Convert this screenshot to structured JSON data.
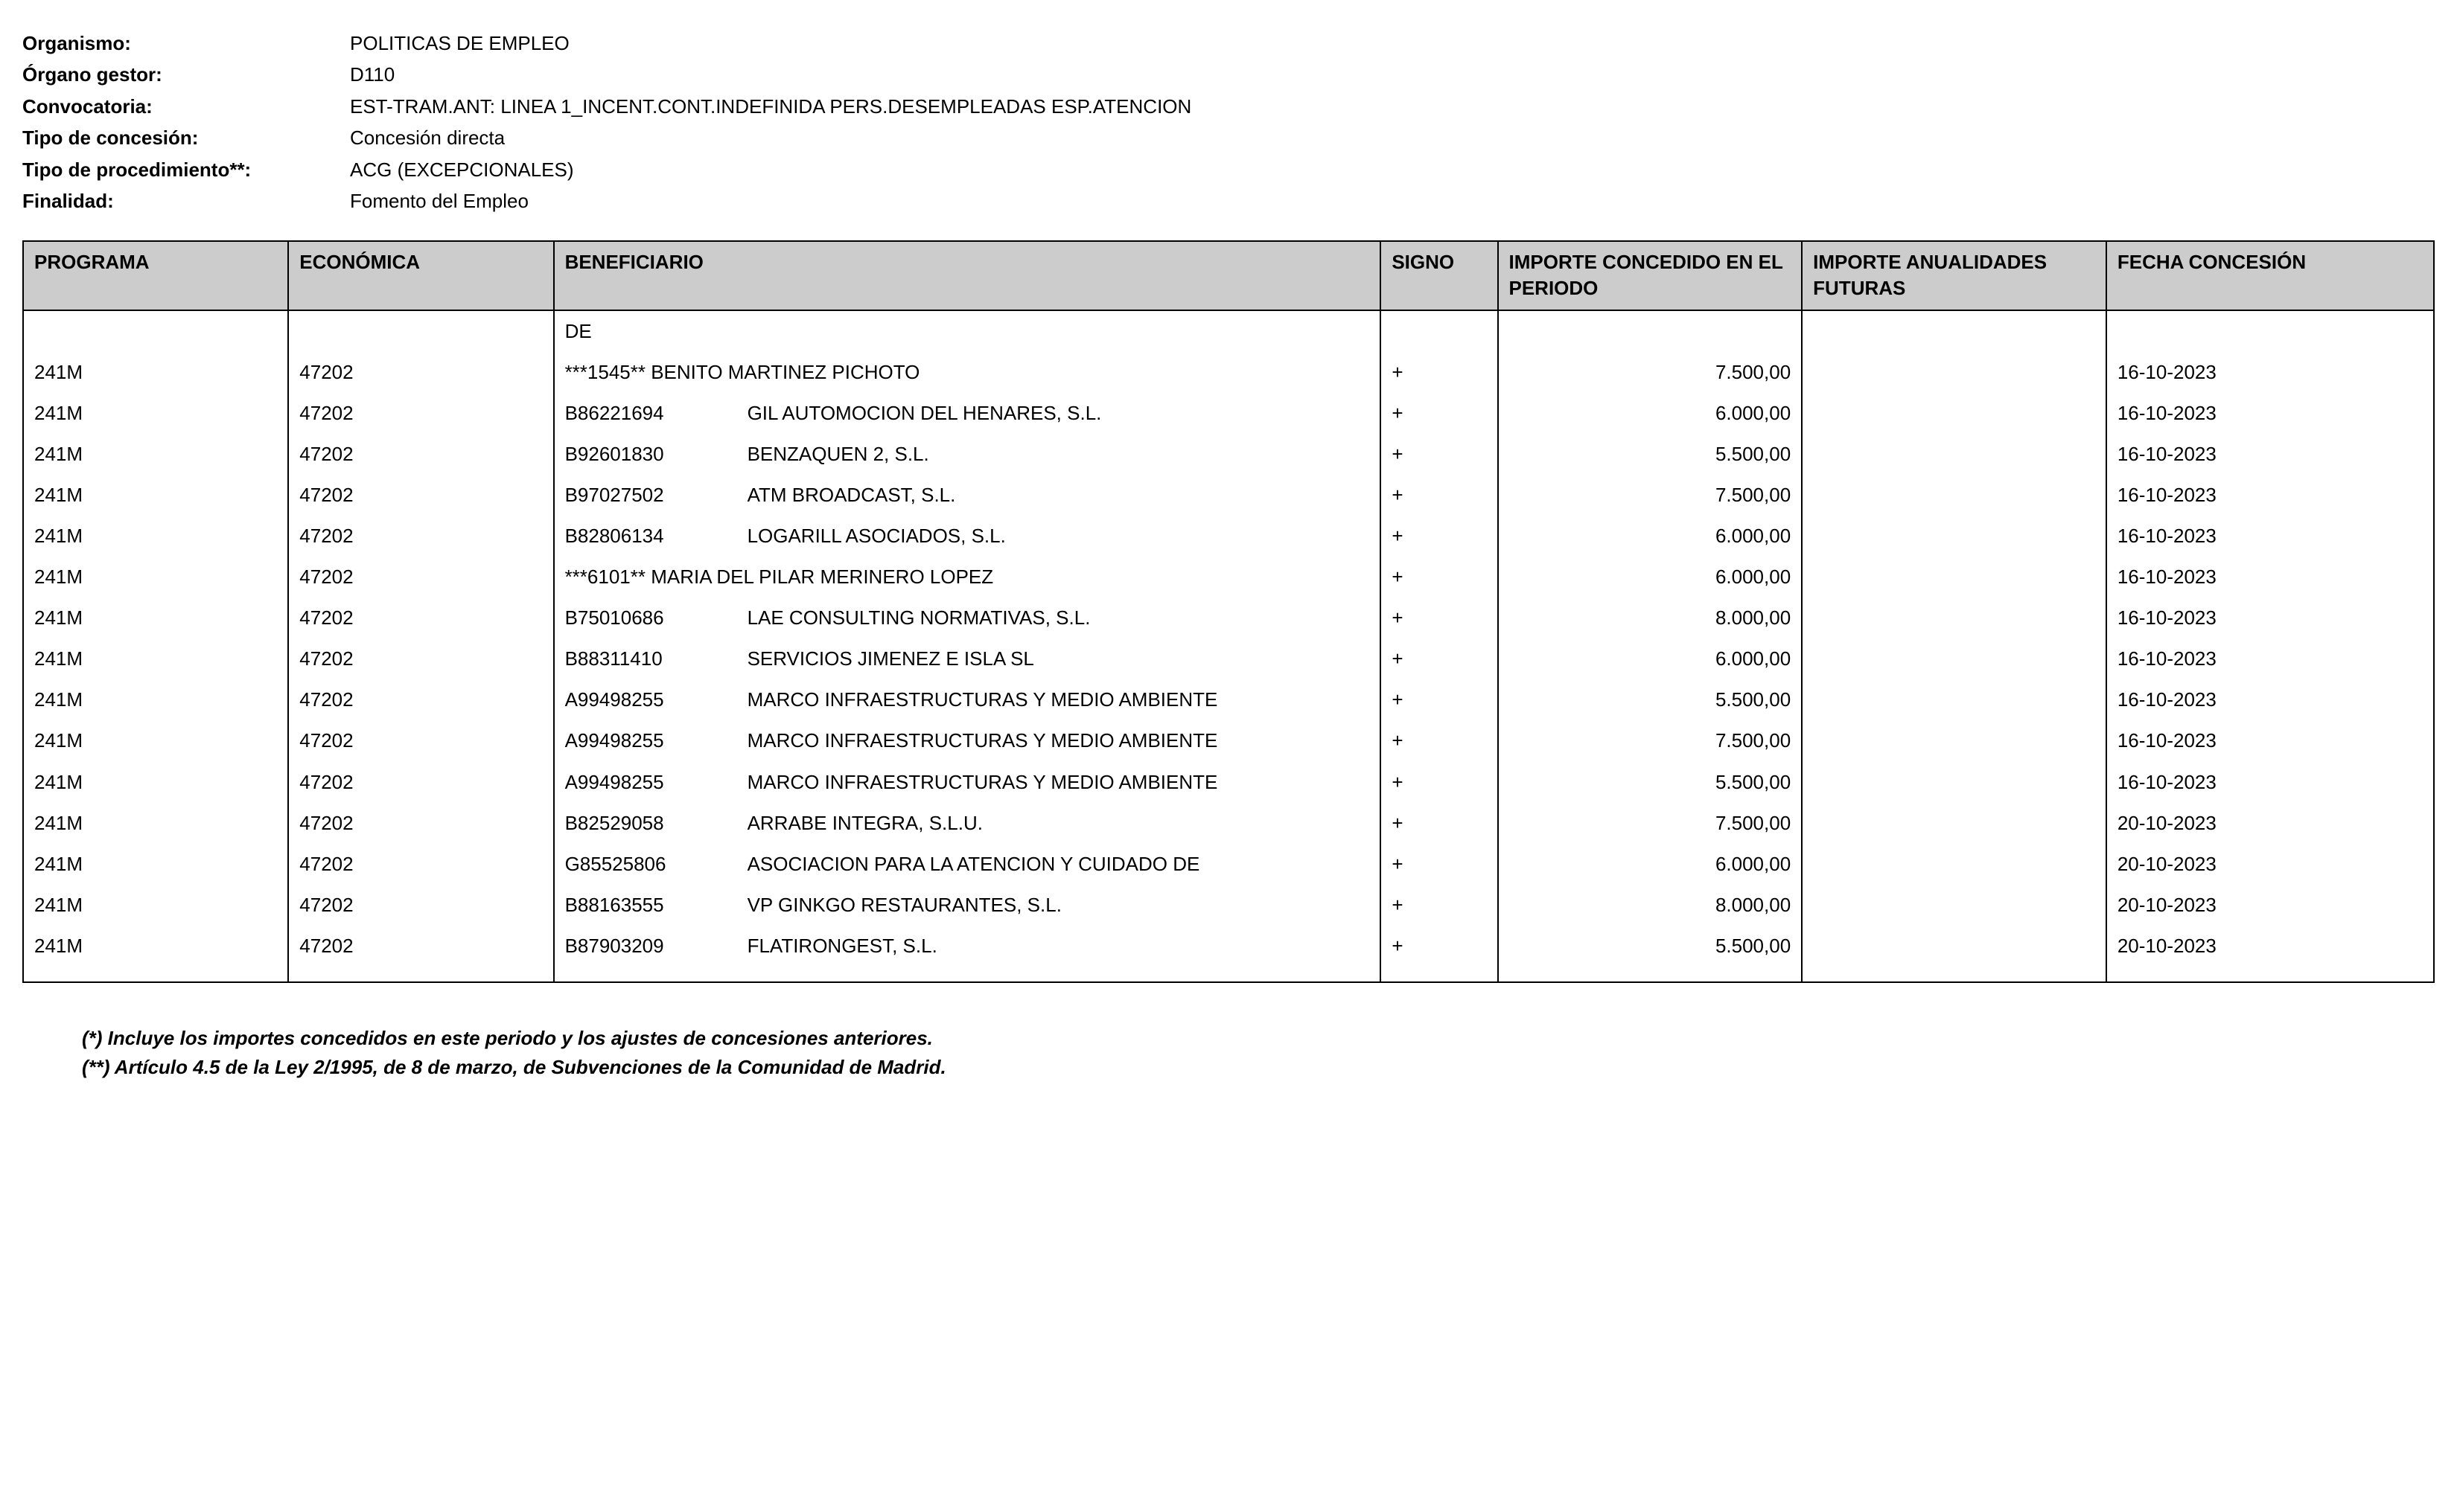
{
  "meta": {
    "organismo_label": "Organismo:",
    "organismo_value": "POLITICAS DE EMPLEO",
    "organo_label": "Órgano gestor:",
    "organo_value": "D110",
    "convocatoria_label": "Convocatoria:",
    "convocatoria_value": "EST-TRAM.ANT: LINEA 1_INCENT.CONT.INDEFINIDA PERS.DESEMPLEADAS ESP.ATENCION",
    "tipo_concesion_label": "Tipo de concesión:",
    "tipo_concesion_value": "Concesión directa",
    "tipo_proc_label": "Tipo de procedimiento**:",
    "tipo_proc_value": "ACG (EXCEPCIONALES)",
    "finalidad_label": "Finalidad:",
    "finalidad_value": "Fomento del Empleo"
  },
  "table": {
    "headers": {
      "programa": "PROGRAMA",
      "economica": "ECONÓMICA",
      "beneficiario": "BENEFICIARIO",
      "signo": "SIGNO",
      "importe_periodo": "IMPORTE CONCEDIDO EN EL PERIODO",
      "importe_futuras": "IMPORTE ANUALIDADES FUTURAS",
      "fecha": "FECHA CONCESIÓN"
    },
    "rows": [
      {
        "programa": "",
        "economica": "",
        "code": "",
        "name": "DE",
        "signo": "",
        "importe_periodo": "",
        "importe_futuras": "",
        "fecha": ""
      },
      {
        "programa": "241M",
        "economica": "47202",
        "code": "***1545**",
        "name": "BENITO MARTINEZ PICHOTO",
        "signo": "+",
        "importe_periodo": "7.500,00",
        "importe_futuras": "",
        "fecha": "16-10-2023",
        "mergecode": true
      },
      {
        "programa": "241M",
        "economica": "47202",
        "code": "B86221694",
        "name": "GIL AUTOMOCION DEL HENARES, S.L.",
        "signo": "+",
        "importe_periodo": "6.000,00",
        "importe_futuras": "",
        "fecha": "16-10-2023"
      },
      {
        "programa": "241M",
        "economica": "47202",
        "code": "B92601830",
        "name": "BENZAQUEN 2, S.L.",
        "signo": "+",
        "importe_periodo": "5.500,00",
        "importe_futuras": "",
        "fecha": "16-10-2023"
      },
      {
        "programa": "241M",
        "economica": "47202",
        "code": "B97027502",
        "name": "ATM BROADCAST, S.L.",
        "signo": "+",
        "importe_periodo": "7.500,00",
        "importe_futuras": "",
        "fecha": "16-10-2023"
      },
      {
        "programa": "241M",
        "economica": "47202",
        "code": "B82806134",
        "name": "LOGARILL ASOCIADOS, S.L.",
        "signo": "+",
        "importe_periodo": "6.000,00",
        "importe_futuras": "",
        "fecha": "16-10-2023"
      },
      {
        "programa": "241M",
        "economica": "47202",
        "code": "***6101**",
        "name": "MARIA DEL PILAR MERINERO LOPEZ",
        "signo": "+",
        "importe_periodo": "6.000,00",
        "importe_futuras": "",
        "fecha": "16-10-2023",
        "mergecode": true
      },
      {
        "programa": "241M",
        "economica": "47202",
        "code": "B75010686",
        "name": "LAE CONSULTING NORMATIVAS, S.L.",
        "signo": "+",
        "importe_periodo": "8.000,00",
        "importe_futuras": "",
        "fecha": "16-10-2023"
      },
      {
        "programa": "241M",
        "economica": "47202",
        "code": "B88311410",
        "name": "SERVICIOS JIMENEZ E ISLA SL",
        "signo": "+",
        "importe_periodo": "6.000,00",
        "importe_futuras": "",
        "fecha": "16-10-2023"
      },
      {
        "programa": "241M",
        "economica": "47202",
        "code": "A99498255",
        "name": "MARCO INFRAESTRUCTURAS Y MEDIO AMBIENTE",
        "signo": "+",
        "importe_periodo": "5.500,00",
        "importe_futuras": "",
        "fecha": "16-10-2023",
        "wrap": true
      },
      {
        "programa": "241M",
        "economica": "47202",
        "code": "A99498255",
        "name": "MARCO INFRAESTRUCTURAS Y MEDIO AMBIENTE",
        "signo": "+",
        "importe_periodo": "7.500,00",
        "importe_futuras": "",
        "fecha": "16-10-2023",
        "wrap": true
      },
      {
        "programa": "241M",
        "economica": "47202",
        "code": "A99498255",
        "name": "MARCO INFRAESTRUCTURAS Y MEDIO AMBIENTE",
        "signo": "+",
        "importe_periodo": "5.500,00",
        "importe_futuras": "",
        "fecha": "16-10-2023",
        "wrap": true
      },
      {
        "programa": "241M",
        "economica": "47202",
        "code": "B82529058",
        "name": "ARRABE INTEGRA, S.L.U.",
        "signo": "+",
        "importe_periodo": "7.500,00",
        "importe_futuras": "",
        "fecha": "20-10-2023"
      },
      {
        "programa": "241M",
        "economica": "47202",
        "code": "G85525806",
        "name": "ASOCIACION PARA LA ATENCION Y CUIDADO DE",
        "signo": "+",
        "importe_periodo": "6.000,00",
        "importe_futuras": "",
        "fecha": "20-10-2023",
        "wrap": true
      },
      {
        "programa": "241M",
        "economica": "47202",
        "code": "B88163555",
        "name": "VP GINKGO RESTAURANTES, S.L.",
        "signo": "+",
        "importe_periodo": "8.000,00",
        "importe_futuras": "",
        "fecha": "20-10-2023"
      },
      {
        "programa": "241M",
        "economica": "47202",
        "code": "B87903209",
        "name": "FLATIRONGEST, S.L.",
        "signo": "+",
        "importe_periodo": "5.500,00",
        "importe_futuras": "",
        "fecha": "20-10-2023"
      }
    ]
  },
  "footnotes": {
    "f1": "(*) Incluye los importes concedidos en este periodo y los ajustes de concesiones anteriores.",
    "f2": "(**) Artículo 4.5 de la Ley 2/1995, de 8 de marzo, de Subvenciones de la Comunidad de Madrid."
  }
}
